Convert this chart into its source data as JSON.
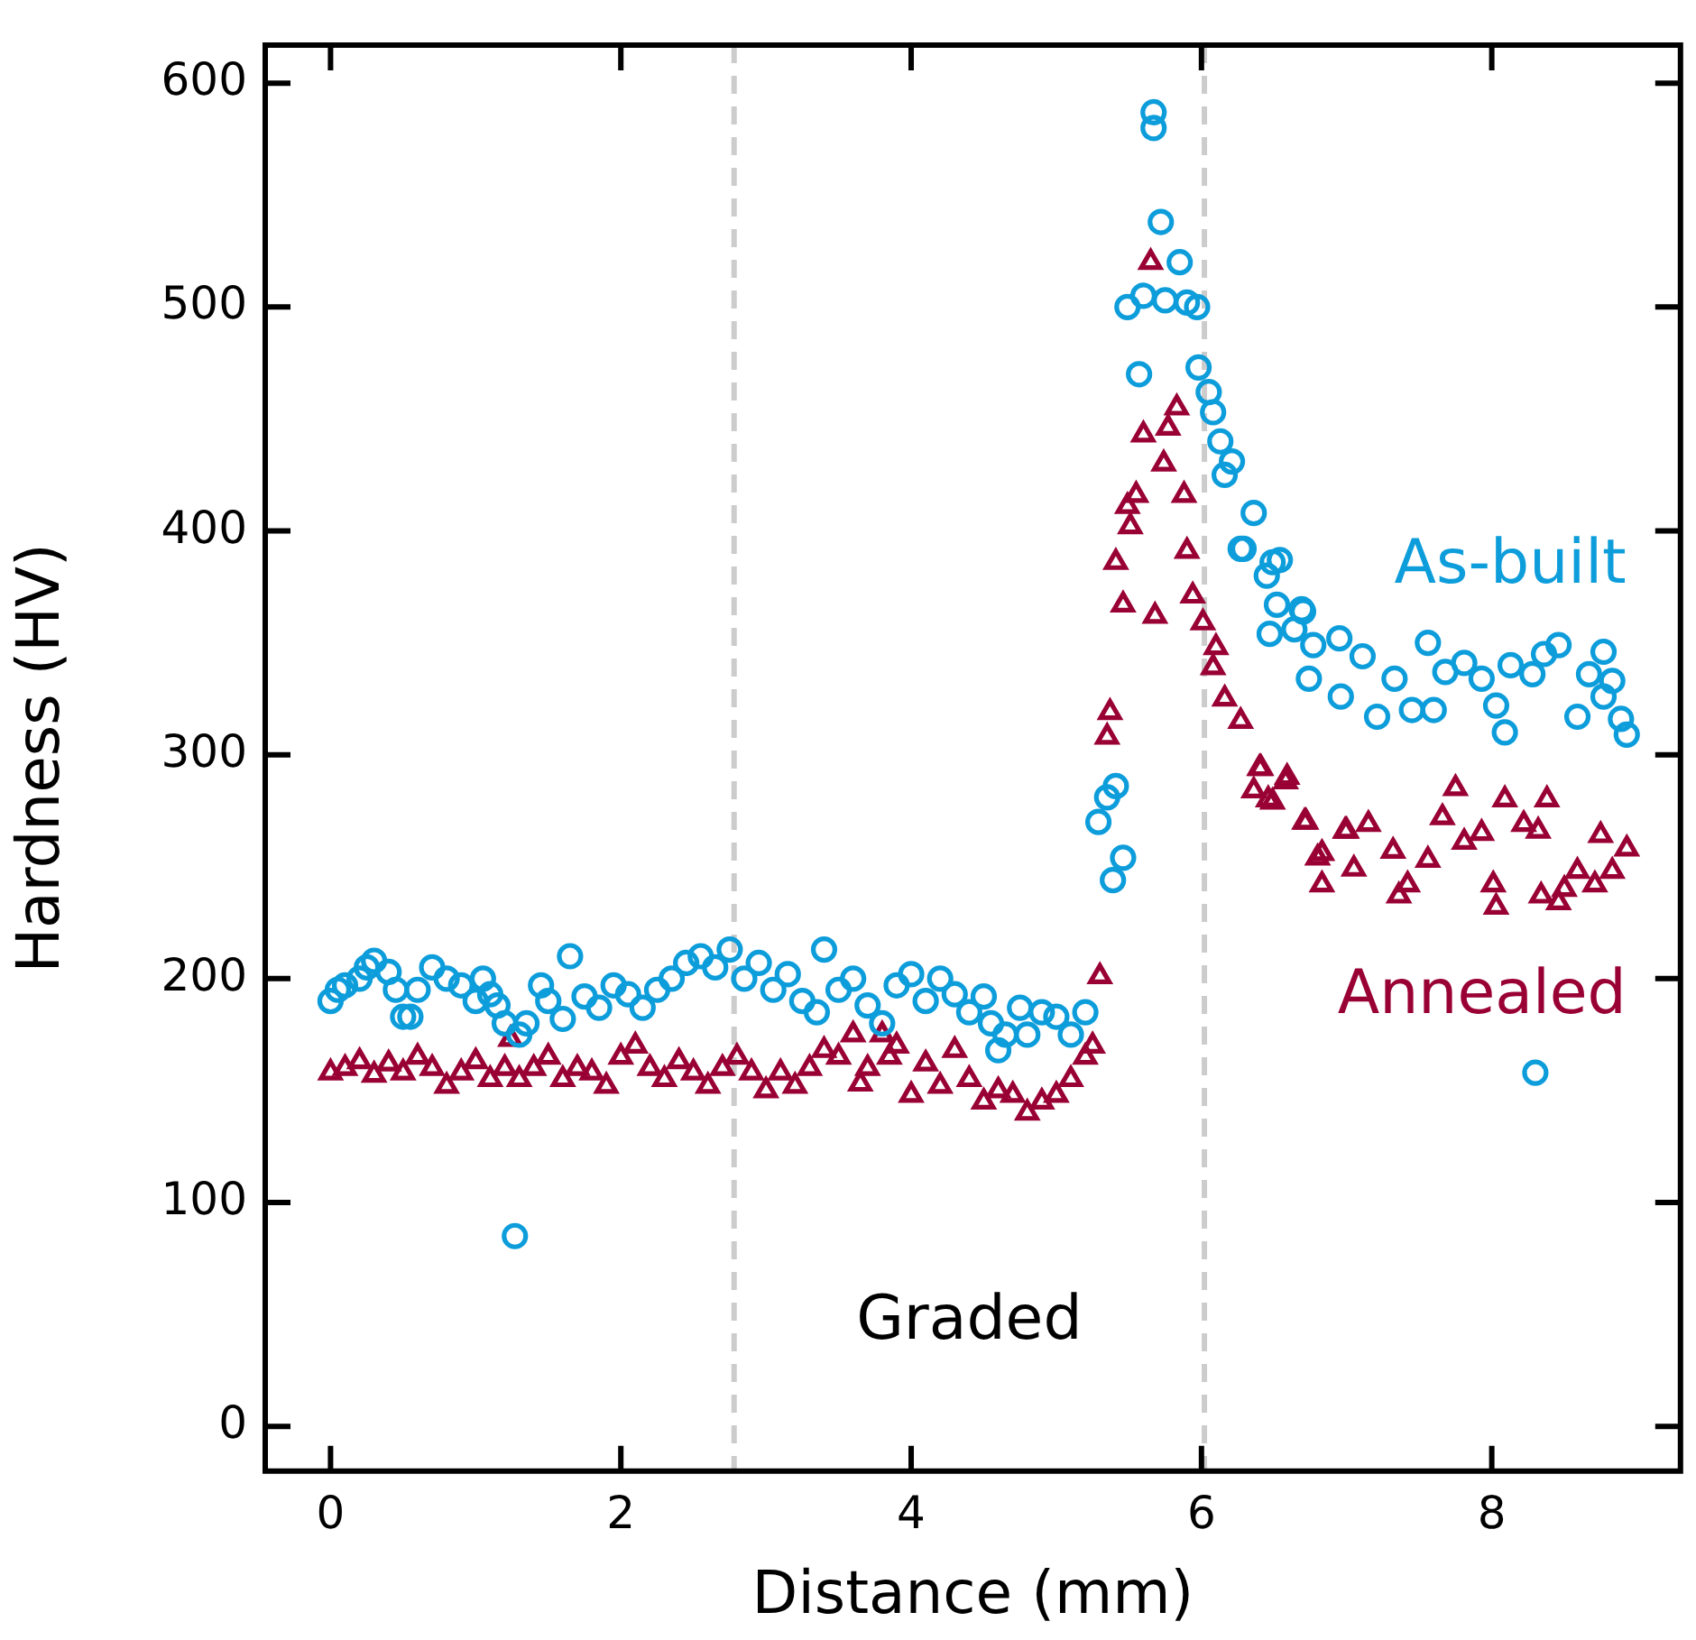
{
  "chart_data": {
    "type": "scatter",
    "xlabel": "Distance (mm)",
    "ylabel": "Hardness (HV)",
    "xlim": [
      -0.45,
      9.3
    ],
    "ylim": [
      -20,
      617
    ],
    "xticks": [
      0,
      2,
      4,
      6,
      8
    ],
    "yticks": [
      0,
      100,
      200,
      300,
      400,
      500,
      600
    ],
    "grid": false,
    "legend": false,
    "ref_lines": [
      {
        "axis": "x",
        "value": 2.78,
        "color": "#cccccc",
        "line_style": "dashed"
      },
      {
        "axis": "x",
        "value": 6.02,
        "color": "#cccccc",
        "line_style": "dashed"
      }
    ],
    "annotations": [
      "Graded"
    ],
    "series": [
      {
        "name": "As-built",
        "color": "#0d9ddb",
        "marker": "circle",
        "x": [
          0,
          0.05,
          0.1,
          0.2,
          0.25,
          0.3,
          0.4,
          0.45,
          0.5,
          0.55,
          0.6,
          0.7,
          0.8,
          0.9,
          1.0,
          1.05,
          1.1,
          1.15,
          1.2,
          1.27,
          1.3,
          1.35,
          1.45,
          1.5,
          1.6,
          1.65,
          1.75,
          1.85,
          1.95,
          2.05,
          2.15,
          2.25,
          2.35,
          2.45,
          2.55,
          2.65,
          2.75,
          2.85,
          2.95,
          3.05,
          3.15,
          3.25,
          3.35,
          3.4,
          3.5,
          3.6,
          3.7,
          3.8,
          3.9,
          4.0,
          4.1,
          4.2,
          4.3,
          4.4,
          4.5,
          4.55,
          4.6,
          4.65,
          4.75,
          4.8,
          4.9,
          5.0,
          5.1,
          5.2,
          5.29,
          5.35,
          5.39,
          5.41,
          5.46,
          5.49,
          5.57,
          5.6,
          5.67,
          5.67,
          5.72,
          5.75,
          5.85,
          5.9,
          5.97,
          5.98,
          6.05,
          6.08,
          6.13,
          6.16,
          6.21,
          6.27,
          6.29,
          6.36,
          6.45,
          6.47,
          6.49,
          6.52,
          6.54,
          6.64,
          6.69,
          6.7,
          6.74,
          6.77,
          6.95,
          6.96,
          7.11,
          7.21,
          7.33,
          7.45,
          7.56,
          7.6,
          7.68,
          7.81,
          7.93,
          8.03,
          8.09,
          8.13,
          8.28,
          8.3,
          8.36,
          8.46,
          8.59,
          8.67,
          8.77,
          8.77,
          8.83,
          8.89,
          8.93
        ],
        "values": [
          190,
          195,
          197,
          200,
          205,
          208,
          203,
          195,
          183,
          183,
          195,
          205,
          200,
          197,
          190,
          200,
          193,
          188,
          180,
          85,
          175,
          180,
          197,
          190,
          182,
          210,
          192,
          187,
          197,
          193,
          187,
          195,
          200,
          207,
          210,
          205,
          213,
          200,
          207,
          195,
          202,
          190,
          185,
          213,
          195,
          200,
          188,
          180,
          197,
          202,
          190,
          200,
          193,
          185,
          192,
          180,
          168,
          175,
          187,
          175,
          185,
          183,
          175,
          185,
          270,
          281,
          244,
          286,
          254,
          500,
          470,
          505,
          587,
          580,
          538,
          503,
          520,
          502,
          500,
          473,
          462,
          453,
          440,
          425,
          431,
          392,
          392,
          408,
          380,
          354,
          386,
          367,
          387,
          356,
          365,
          364,
          334,
          349,
          352,
          326,
          344,
          317,
          334,
          320,
          350,
          320,
          337,
          341,
          334,
          322,
          310,
          340,
          336,
          158,
          345,
          349,
          317,
          336,
          346,
          326,
          333,
          316,
          309
        ]
      },
      {
        "name": "Annealed",
        "color": "#990033",
        "marker": "triangle",
        "x": [
          0,
          0.1,
          0.2,
          0.3,
          0.4,
          0.5,
          0.6,
          0.7,
          0.8,
          0.9,
          1.0,
          1.1,
          1.2,
          1.24,
          1.3,
          1.4,
          1.5,
          1.6,
          1.7,
          1.8,
          1.9,
          2.0,
          2.1,
          2.2,
          2.3,
          2.4,
          2.5,
          2.6,
          2.7,
          2.8,
          2.9,
          3.0,
          3.1,
          3.2,
          3.3,
          3.4,
          3.5,
          3.6,
          3.65,
          3.7,
          3.8,
          3.85,
          3.9,
          4.0,
          4.1,
          4.2,
          4.3,
          4.4,
          4.5,
          4.6,
          4.7,
          4.8,
          4.9,
          5.0,
          5.1,
          5.2,
          5.25,
          5.3,
          5.35,
          5.37,
          5.41,
          5.46,
          5.49,
          5.51,
          5.55,
          5.6,
          5.65,
          5.68,
          5.74,
          5.77,
          5.83,
          5.88,
          5.9,
          5.94,
          6.01,
          6.08,
          6.1,
          6.16,
          6.27,
          6.36,
          6.4,
          6.41,
          6.46,
          6.49,
          6.58,
          6.59,
          6.71,
          6.72,
          6.8,
          6.83,
          6.83,
          6.99,
          7.0,
          7.05,
          7.15,
          7.32,
          7.36,
          7.42,
          7.56,
          7.66,
          7.75,
          7.81,
          7.93,
          8.01,
          8.03,
          8.09,
          8.22,
          8.32,
          8.34,
          8.38,
          8.46,
          8.5,
          8.59,
          8.71,
          8.75,
          8.83,
          8.93
        ],
        "values": [
          158,
          160,
          163,
          157,
          162,
          158,
          165,
          160,
          152,
          158,
          163,
          155,
          160,
          173,
          155,
          160,
          165,
          155,
          160,
          158,
          152,
          165,
          170,
          160,
          155,
          163,
          158,
          152,
          160,
          165,
          158,
          150,
          158,
          152,
          160,
          168,
          165,
          175,
          153,
          160,
          175,
          165,
          170,
          148,
          162,
          152,
          168,
          155,
          145,
          150,
          148,
          140,
          145,
          148,
          155,
          165,
          170,
          201,
          308,
          319,
          386,
          367,
          411,
          402,
          416,
          443,
          520,
          362,
          430,
          446,
          455,
          416,
          391,
          371,
          359,
          339,
          348,
          325,
          315,
          284,
          294,
          294,
          280,
          279,
          288,
          290,
          270,
          270,
          254,
          256,
          242,
          266,
          266,
          249,
          269,
          257,
          237,
          242,
          253,
          272,
          285,
          261,
          265,
          242,
          232,
          280,
          269,
          266,
          237,
          280,
          234,
          240,
          248,
          242,
          264,
          248,
          258
        ]
      }
    ]
  }
}
